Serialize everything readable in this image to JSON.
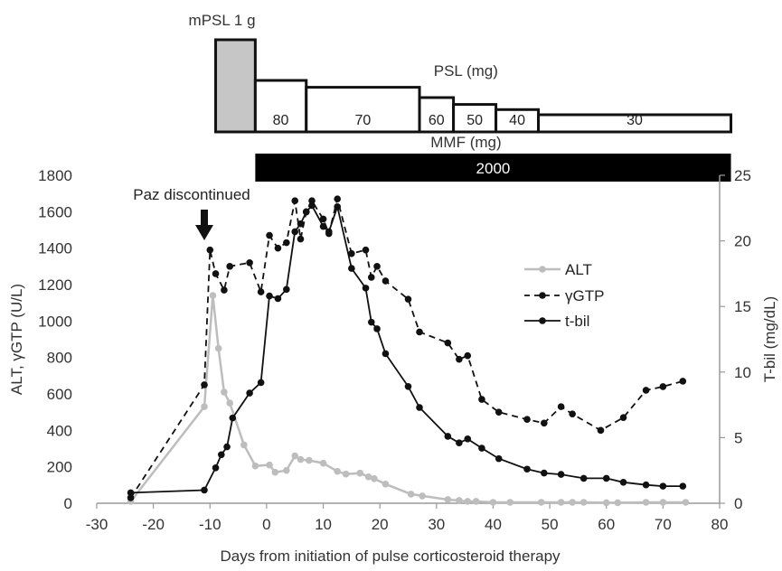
{
  "chart_data": {
    "type": "line",
    "xlabel": "Days from initiation of pulse corticosteroid therapy",
    "ylabel_left": "ALT, γGTP (U/L)",
    "ylabel_right": "T-bil (mg/dL)",
    "xlim": [
      -30,
      80
    ],
    "ylim_left": [
      0,
      1800
    ],
    "ylim_right": [
      0,
      25
    ],
    "x_ticks": [
      "-30",
      "-20",
      "-10",
      "0",
      "10",
      "20",
      "30",
      "40",
      "50",
      "60",
      "70",
      "80"
    ],
    "y_left_ticks": [
      "0",
      "200",
      "400",
      "600",
      "800",
      "1000",
      "1200",
      "1400",
      "1600",
      "1800"
    ],
    "y_right_ticks": [
      "0",
      "5",
      "10",
      "15",
      "20",
      "25"
    ],
    "grid": false,
    "legend_position": "right",
    "annotation": {
      "text": "Paz discontinued",
      "x": -11
    },
    "series": [
      {
        "name": "ALT",
        "axis": "left",
        "color": "#bdbdbd",
        "style": "solid",
        "points": [
          [
            -24,
            10
          ],
          [
            -11,
            530
          ],
          [
            -9.5,
            1140
          ],
          [
            -8.5,
            850
          ],
          [
            -7.5,
            610
          ],
          [
            -6.5,
            550
          ],
          [
            -4,
            320
          ],
          [
            -2,
            205
          ],
          [
            0.5,
            210
          ],
          [
            1.5,
            170
          ],
          [
            3.5,
            180
          ],
          [
            5,
            260
          ],
          [
            6,
            240
          ],
          [
            7.5,
            235
          ],
          [
            10,
            220
          ],
          [
            12.5,
            175
          ],
          [
            14,
            160
          ],
          [
            16.5,
            165
          ],
          [
            18,
            145
          ],
          [
            19,
            135
          ],
          [
            21,
            105
          ],
          [
            25.5,
            50
          ],
          [
            27.5,
            40
          ],
          [
            32,
            20
          ],
          [
            34,
            15
          ],
          [
            35.5,
            10
          ],
          [
            37,
            10
          ],
          [
            40,
            5
          ],
          [
            43,
            5
          ],
          [
            48.5,
            5
          ],
          [
            52,
            5
          ],
          [
            54,
            5
          ],
          [
            56,
            5
          ],
          [
            60,
            3
          ],
          [
            62,
            3
          ],
          [
            67,
            5
          ],
          [
            70,
            5
          ],
          [
            74,
            5
          ]
        ]
      },
      {
        "name": "γGTP",
        "axis": "left",
        "color": "#111111",
        "style": "dashed",
        "points": [
          [
            -24,
            30
          ],
          [
            -11,
            650
          ],
          [
            -10,
            1390
          ],
          [
            -9,
            1260
          ],
          [
            -7.5,
            1170
          ],
          [
            -6.5,
            1300
          ],
          [
            -3,
            1320
          ],
          [
            -1,
            1160
          ],
          [
            0.5,
            1470
          ],
          [
            2,
            1400
          ],
          [
            3.5,
            1430
          ],
          [
            5,
            1660
          ],
          [
            6,
            1450
          ],
          [
            7,
            1600
          ],
          [
            8,
            1660
          ],
          [
            10,
            1560
          ],
          [
            11,
            1480
          ],
          [
            12.5,
            1670
          ],
          [
            15,
            1370
          ],
          [
            17.5,
            1390
          ],
          [
            18.5,
            1240
          ],
          [
            19.5,
            1300
          ],
          [
            21,
            1220
          ],
          [
            25,
            1120
          ],
          [
            27,
            940
          ],
          [
            32,
            880
          ],
          [
            34,
            790
          ],
          [
            35.5,
            810
          ],
          [
            38,
            570
          ],
          [
            41,
            500
          ],
          [
            46,
            460
          ],
          [
            49,
            440
          ],
          [
            52,
            530
          ],
          [
            54,
            490
          ],
          [
            59,
            400
          ],
          [
            63,
            470
          ],
          [
            67,
            620
          ],
          [
            70,
            640
          ],
          [
            73.5,
            670
          ]
        ]
      },
      {
        "name": "t-bil",
        "axis": "right",
        "color": "#111111",
        "style": "solid",
        "points": [
          [
            -24,
            0.8
          ],
          [
            -11,
            1
          ],
          [
            -9,
            2.7
          ],
          [
            -8,
            3.7
          ],
          [
            -7,
            4.3
          ],
          [
            -6,
            6.5
          ],
          [
            -3,
            8.4
          ],
          [
            -1,
            9.2
          ],
          [
            0.5,
            15.8
          ],
          [
            2,
            15.6
          ],
          [
            3.5,
            16.3
          ],
          [
            5,
            20.7
          ],
          [
            6,
            21.3
          ],
          [
            7,
            22.2
          ],
          [
            8,
            22.7
          ],
          [
            10,
            21.1
          ],
          [
            11,
            20.7
          ],
          [
            12.5,
            22.6
          ],
          [
            15,
            17.9
          ],
          [
            17.5,
            16.4
          ],
          [
            18.5,
            13.8
          ],
          [
            19.5,
            13.3
          ],
          [
            21,
            11.4
          ],
          [
            25,
            8.9
          ],
          [
            27,
            7.3
          ],
          [
            32,
            5.1
          ],
          [
            34,
            4.6
          ],
          [
            35.5,
            4.9
          ],
          [
            38,
            4.2
          ],
          [
            41,
            3.4
          ],
          [
            46,
            2.6
          ],
          [
            49,
            2.3
          ],
          [
            52,
            2.2
          ],
          [
            56,
            1.9
          ],
          [
            60,
            1.9
          ],
          [
            63,
            1.6
          ],
          [
            67,
            1.4
          ],
          [
            70,
            1.3
          ],
          [
            73.5,
            1.3
          ]
        ]
      }
    ],
    "treatment": {
      "mpsl": {
        "label": "mPSL 1 g",
        "fill": "#c6c6c6",
        "x_start": -9,
        "x_end": -2
      },
      "psl": {
        "label": "PSL (mg)",
        "segments": [
          {
            "dose": "80",
            "x_start": -2,
            "x_end": 7,
            "level": 3
          },
          {
            "dose": "70",
            "x_start": 7,
            "x_end": 27,
            "level": 2.6
          },
          {
            "dose": "60",
            "x_start": 27,
            "x_end": 33,
            "level": 2
          },
          {
            "dose": "50",
            "x_start": 33,
            "x_end": 40.5,
            "level": 1.6
          },
          {
            "dose": "40",
            "x_start": 40.5,
            "x_end": 48,
            "level": 1.3
          },
          {
            "dose": "30",
            "x_start": 48,
            "x_end": 82,
            "level": 1
          }
        ]
      },
      "mmf": {
        "label": "MMF (mg)",
        "dose": "2000",
        "x_start": -2,
        "x_end": 82,
        "fill": "#000000",
        "text_color": "#ffffff"
      }
    }
  }
}
